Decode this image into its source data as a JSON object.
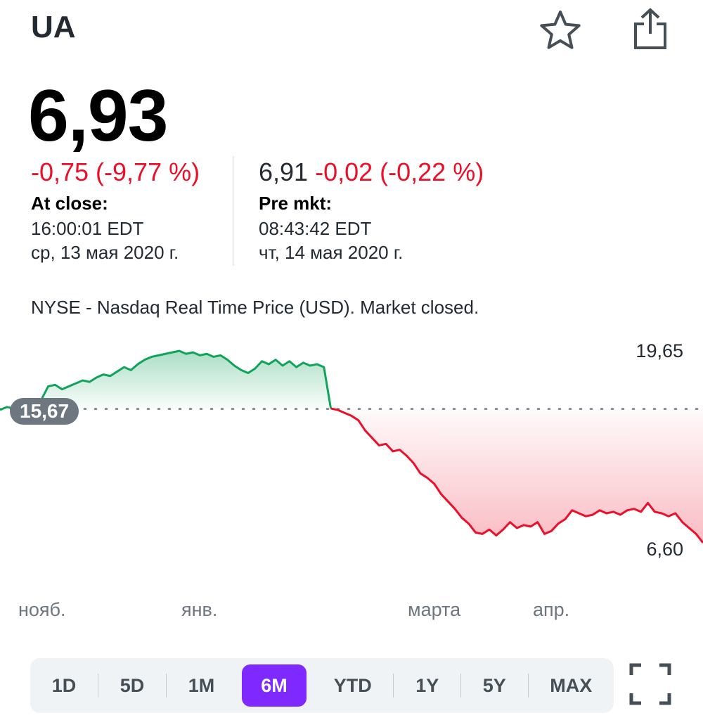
{
  "header": {
    "ticker": "UA",
    "star_icon": "star-icon",
    "share_icon": "share-icon"
  },
  "quote": {
    "price": "6,93",
    "close_change": "-0,75 (-9,77 %)",
    "close_label": "At close:",
    "close_time": "16:00:01 EDT",
    "close_date": "ср, 13 мая 2020 г.",
    "pre_price": "6,91",
    "pre_change": "-0,02 (-0,22 %)",
    "pre_label": "Pre mkt:",
    "pre_time": "08:43:42 EDT",
    "pre_date": "чт, 14 мая 2020 г."
  },
  "market_note": "NYSE - Nasdaq Real Time Price (USD). Market closed.",
  "chart_data": {
    "type": "line",
    "y_max_label": "19,65",
    "y_min_label": "6,60",
    "previous_close_label": "15,67",
    "previous_close": 15.67,
    "ylim": [
      6.6,
      19.65
    ],
    "x_labels": [
      "нояб.",
      "янв.",
      "марта",
      "апр."
    ],
    "colors": {
      "up": "#10a35a",
      "down": "#eb0f29"
    },
    "series": [
      {
        "values": [
          15.6,
          15.8,
          15.7,
          16.0,
          15.8,
          15.9,
          16.3,
          17.2,
          17.3,
          17.0,
          17.2,
          17.4,
          17.6,
          17.5,
          17.8,
          18.0,
          17.9,
          18.2,
          18.5,
          18.3,
          18.7,
          19.0,
          19.2,
          19.3,
          19.4,
          19.5,
          19.6,
          19.4,
          19.5,
          19.3,
          19.4,
          19.2,
          19.3,
          19.0,
          18.6,
          18.3,
          18.1,
          18.4,
          18.9,
          18.7,
          19.0,
          18.6,
          18.9,
          18.5,
          18.8,
          18.6,
          18.7,
          18.5,
          15.7,
          15.6,
          15.4,
          15.2,
          14.9,
          14.2,
          13.7,
          13.2,
          13.3,
          12.8,
          12.9,
          12.5,
          12.0,
          11.3,
          11.0,
          10.6,
          9.9,
          9.4,
          8.9,
          8.3,
          7.9,
          7.3,
          7.2,
          7.5,
          7.1,
          7.5,
          8.0,
          7.6,
          7.8,
          7.7,
          8.0,
          7.2,
          7.4,
          7.9,
          8.2,
          8.8,
          8.6,
          8.4,
          8.5,
          8.8,
          8.6,
          8.7,
          8.5,
          8.8,
          8.9,
          8.7,
          9.3,
          8.7,
          8.6,
          8.4,
          8.6,
          8.0,
          7.6,
          7.2,
          6.6
        ]
      }
    ]
  },
  "ranges": {
    "items": [
      "1D",
      "5D",
      "1M",
      "6M",
      "YTD",
      "1Y",
      "5Y",
      "MAX"
    ],
    "selected": "6M"
  },
  "fullscreen_icon": "fullscreen-icon"
}
